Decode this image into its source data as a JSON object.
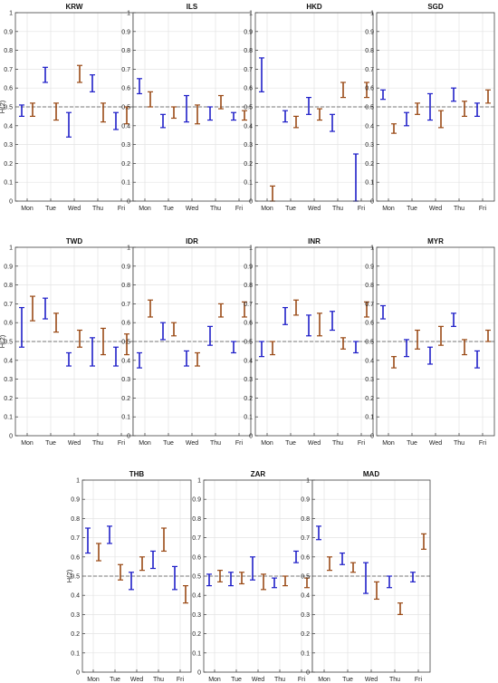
{
  "figure": {
    "ylabel": "H(2)",
    "days": [
      "Mon",
      "Tue",
      "Wed",
      "Thu",
      "Fri"
    ],
    "yticks": [
      "0",
      "0.1",
      "0.2",
      "0.3",
      "0.4",
      "0.5",
      "0.6",
      "0.7",
      "0.8",
      "0.9",
      "1"
    ],
    "colors": {
      "series_a": "#1f1fc8",
      "series_b": "#9a4a16",
      "reference_line": "#777777",
      "grid": "#e3e3e3"
    }
  },
  "chart_data": [
    {
      "type": "errorbar",
      "title": "KRW",
      "categories": [
        "Mon",
        "Tue",
        "Wed",
        "Thu",
        "Fri"
      ],
      "ylim": [
        0,
        1
      ],
      "reference_line": 0.5,
      "series": [
        {
          "color": "#1f1fc8",
          "low": [
            0.45,
            0.63,
            0.34,
            0.58,
            0.38
          ],
          "high": [
            0.51,
            0.71,
            0.47,
            0.67,
            0.47
          ]
        },
        {
          "color": "#9a4a16",
          "low": [
            0.45,
            0.43,
            null,
            0.42,
            0.41
          ],
          "high": [
            0.52,
            0.52,
            null,
            0.52,
            0.5
          ]
        },
        {
          "color": "#9a4a16",
          "low": [
            null,
            null,
            0.63,
            null,
            null
          ],
          "high": [
            null,
            null,
            0.72,
            null,
            null
          ]
        }
      ]
    },
    {
      "type": "errorbar",
      "title": "ILS",
      "categories": [
        "Mon",
        "Tue",
        "Wed",
        "Thu",
        "Fri"
      ],
      "ylim": [
        0,
        1
      ],
      "reference_line": 0.5,
      "series": [
        {
          "color": "#1f1fc8",
          "low": [
            0.57,
            0.39,
            0.42,
            0.43,
            0.43
          ],
          "high": [
            0.65,
            0.46,
            0.56,
            0.5,
            0.47
          ]
        },
        {
          "color": "#9a4a16",
          "low": [
            0.5,
            0.44,
            0.41,
            0.49,
            0.43
          ],
          "high": [
            0.58,
            0.5,
            0.51,
            0.56,
            0.48
          ]
        }
      ]
    },
    {
      "type": "errorbar",
      "title": "HKD",
      "categories": [
        "Mon",
        "Tue",
        "Wed",
        "Thu",
        "Fri"
      ],
      "ylim": [
        0,
        1
      ],
      "reference_line": 0.5,
      "series": [
        {
          "color": "#1f1fc8",
          "low": [
            0.58,
            0.42,
            0.46,
            0.37,
            0.0
          ],
          "high": [
            0.76,
            0.48,
            0.55,
            0.46,
            0.25
          ]
        },
        {
          "color": "#9a4a16",
          "low": [
            0.0,
            0.39,
            0.43,
            0.55,
            0.55
          ],
          "high": [
            0.08,
            0.45,
            0.49,
            0.63,
            0.63
          ]
        }
      ]
    },
    {
      "type": "errorbar",
      "title": "SGD",
      "categories": [
        "Mon",
        "Tue",
        "Wed",
        "Thu",
        "Fri"
      ],
      "ylim": [
        0,
        1
      ],
      "reference_line": 0.5,
      "series": [
        {
          "color": "#1f1fc8",
          "low": [
            0.54,
            0.4,
            0.43,
            0.53,
            0.45
          ],
          "high": [
            0.59,
            0.47,
            0.57,
            0.6,
            0.52
          ]
        },
        {
          "color": "#9a4a16",
          "low": [
            0.36,
            0.46,
            0.39,
            0.45,
            0.52
          ],
          "high": [
            0.41,
            0.52,
            0.48,
            0.53,
            0.59
          ]
        }
      ]
    },
    {
      "type": "errorbar",
      "title": "TWD",
      "categories": [
        "Mon",
        "Tue",
        "Wed",
        "Thu",
        "Fri"
      ],
      "ylim": [
        0,
        1
      ],
      "reference_line": 0.5,
      "series": [
        {
          "color": "#1f1fc8",
          "low": [
            0.47,
            0.62,
            0.37,
            0.37,
            0.37
          ],
          "high": [
            0.68,
            0.73,
            0.44,
            0.52,
            0.47
          ]
        },
        {
          "color": "#9a4a16",
          "low": [
            0.61,
            0.55,
            0.47,
            0.43,
            0.43
          ],
          "high": [
            0.74,
            0.65,
            0.56,
            0.57,
            0.54
          ]
        }
      ]
    },
    {
      "type": "errorbar",
      "title": "IDR",
      "categories": [
        "Mon",
        "Tue",
        "Wed",
        "Thu",
        "Fri"
      ],
      "ylim": [
        0,
        1
      ],
      "reference_line": 0.5,
      "series": [
        {
          "color": "#1f1fc8",
          "low": [
            0.36,
            0.51,
            0.37,
            0.48,
            0.44
          ],
          "high": [
            0.44,
            0.6,
            0.45,
            0.58,
            0.5
          ]
        },
        {
          "color": "#9a4a16",
          "low": [
            0.63,
            0.53,
            0.37,
            0.63,
            0.63
          ],
          "high": [
            0.72,
            0.6,
            0.44,
            0.7,
            0.71
          ]
        }
      ]
    },
    {
      "type": "errorbar",
      "title": "INR",
      "categories": [
        "Mon",
        "Tue",
        "Wed",
        "Thu",
        "Fri"
      ],
      "ylim": [
        0,
        1
      ],
      "reference_line": 0.5,
      "series": [
        {
          "color": "#1f1fc8",
          "low": [
            0.42,
            0.59,
            0.53,
            0.56,
            0.44
          ],
          "high": [
            0.5,
            0.68,
            0.64,
            0.66,
            0.5
          ]
        },
        {
          "color": "#9a4a16",
          "low": [
            0.43,
            0.64,
            0.53,
            0.46,
            0.63
          ],
          "high": [
            0.5,
            0.72,
            0.65,
            0.52,
            0.71
          ]
        }
      ]
    },
    {
      "type": "errorbar",
      "title": "MYR",
      "categories": [
        "Mon",
        "Tue",
        "Wed",
        "Thu",
        "Fri"
      ],
      "ylim": [
        0,
        1
      ],
      "reference_line": 0.5,
      "series": [
        {
          "color": "#1f1fc8",
          "low": [
            0.62,
            0.42,
            0.38,
            0.58,
            0.36
          ],
          "high": [
            0.69,
            0.51,
            0.47,
            0.65,
            0.45
          ]
        },
        {
          "color": "#9a4a16",
          "low": [
            0.36,
            0.46,
            0.48,
            0.43,
            0.5
          ],
          "high": [
            0.42,
            0.56,
            0.58,
            0.51,
            0.56
          ]
        }
      ]
    },
    {
      "type": "errorbar",
      "title": "THB",
      "categories": [
        "Mon",
        "Tue",
        "Wed",
        "Thu",
        "Fri"
      ],
      "ylim": [
        0,
        1
      ],
      "reference_line": 0.5,
      "series": [
        {
          "color": "#1f1fc8",
          "low": [
            0.62,
            0.67,
            0.43,
            0.54,
            0.43
          ],
          "high": [
            0.75,
            0.76,
            0.52,
            0.63,
            0.55
          ]
        },
        {
          "color": "#9a4a16",
          "low": [
            0.58,
            0.48,
            0.53,
            0.63,
            0.36
          ],
          "high": [
            0.67,
            0.56,
            0.6,
            0.75,
            0.45
          ]
        }
      ]
    },
    {
      "type": "errorbar",
      "title": "ZAR",
      "categories": [
        "Mon",
        "Tue",
        "Wed",
        "Thu",
        "Fri"
      ],
      "ylim": [
        0,
        1
      ],
      "reference_line": 0.5,
      "series": [
        {
          "color": "#1f1fc8",
          "low": [
            0.45,
            0.45,
            0.48,
            0.44,
            0.57
          ],
          "high": [
            0.51,
            0.52,
            0.6,
            0.49,
            0.63
          ]
        },
        {
          "color": "#9a4a16",
          "low": [
            0.47,
            0.46,
            0.43,
            0.45,
            0.44
          ],
          "high": [
            0.53,
            0.52,
            0.51,
            0.5,
            0.49
          ]
        }
      ]
    },
    {
      "type": "errorbar",
      "title": "MAD",
      "categories": [
        "Mon",
        "Tue",
        "Wed",
        "Thu",
        "Fri"
      ],
      "ylim": [
        0,
        1
      ],
      "reference_line": 0.5,
      "series": [
        {
          "color": "#1f1fc8",
          "low": [
            0.69,
            0.56,
            0.41,
            0.44,
            0.47
          ],
          "high": [
            0.76,
            0.62,
            0.57,
            0.5,
            0.52
          ]
        },
        {
          "color": "#9a4a16",
          "low": [
            0.53,
            0.52,
            0.38,
            0.3,
            0.64
          ],
          "high": [
            0.6,
            0.57,
            0.47,
            0.36,
            0.72
          ]
        }
      ]
    }
  ]
}
